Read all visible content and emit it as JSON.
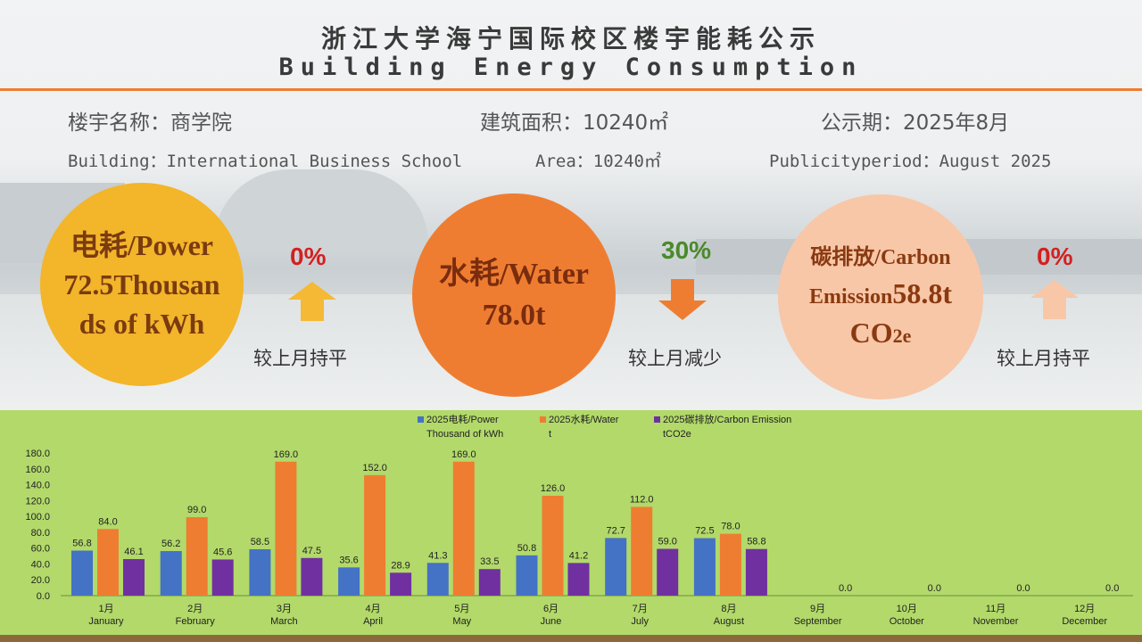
{
  "header": {
    "title_cn": "浙江大学海宁国际校区楼宇能耗公示",
    "title_en": "Building Energy Consumption"
  },
  "info": {
    "building_cn": "楼宇名称：商学院",
    "area_cn": "建筑面积：10240㎡",
    "period_cn": "公示期：2025年8月",
    "building_en": "Building：International Business School",
    "area_en": "Area：10240㎡",
    "period_en": "Publicityperiod：August 2025"
  },
  "kpis": {
    "power": {
      "line1": "电耗/Power",
      "line2": "72.5Thousan",
      "line3": "ds of kWh",
      "change": "0%",
      "comparison": "较上月持平",
      "circle_color": "#f3b52a",
      "arrow_color": "#f5b935"
    },
    "water": {
      "line1": "水耗/Water",
      "line2": "78.0t",
      "change": "30%",
      "comparison": "较上月减少",
      "circle_color": "#ef7d31",
      "arrow_color": "#ef7d31"
    },
    "carbon": {
      "line1": "碳排放/Carbon",
      "line2a": "Emission",
      "line2b": "58.8t",
      "line3a": "CO",
      "line3b": "2e",
      "change": "0%",
      "comparison": "较上月持平",
      "circle_color": "#f8c7a8",
      "arrow_color": "#f8c7a8"
    }
  },
  "colors": {
    "power": "#4472c4",
    "water": "#ef7d31",
    "carbon": "#7030a0",
    "increase": "#d42020",
    "decrease": "#4a8a2a"
  },
  "chart_data": {
    "type": "bar",
    "categories": [
      "1月|January",
      "2月|February",
      "3月|March",
      "4月|April",
      "5月|May",
      "6月|June",
      "7月|July",
      "8月|August",
      "9月|September",
      "10月|October",
      "11月|November",
      "12月|December"
    ],
    "series": [
      {
        "name": "2025电耗/Power Thousand of kWh",
        "values": [
          56.8,
          56.2,
          58.5,
          35.6,
          41.3,
          50.8,
          72.7,
          72.5,
          null,
          null,
          null,
          null
        ]
      },
      {
        "name": "2025水耗/Water t",
        "values": [
          84.0,
          99.0,
          169.0,
          152.0,
          169.0,
          126.0,
          112.0,
          78.0,
          null,
          null,
          null,
          null
        ]
      },
      {
        "name": "2025碳排放/Carbon Emission tCO2e",
        "values": [
          46.1,
          45.6,
          47.5,
          28.9,
          33.5,
          41.2,
          59.0,
          58.8,
          0.0,
          0.0,
          0.0,
          0.0
        ]
      }
    ],
    "ylim": [
      0,
      180
    ],
    "yticks": [
      "0.0",
      "20.0",
      "40.0",
      "60.0",
      "80.0",
      "100.0",
      "120.0",
      "140.0",
      "160.0",
      "180.0"
    ],
    "legend_placement": "top"
  }
}
